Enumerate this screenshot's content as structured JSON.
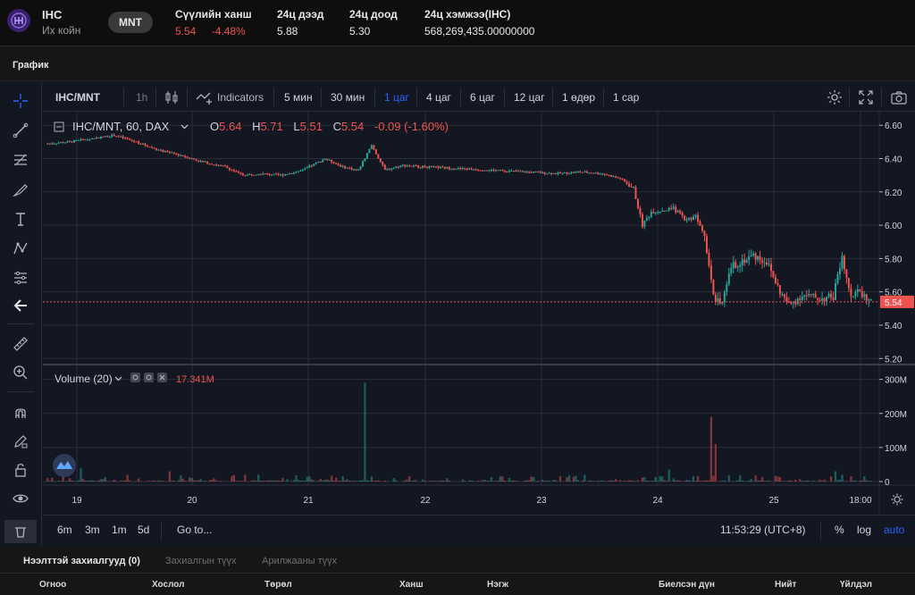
{
  "ticker": {
    "symbol": "IHC",
    "name": "Их койн",
    "quote": "MNT",
    "last_price_label": "Сүүлийн ханш",
    "last_price": "5.54",
    "change_pct": "-4.48%",
    "high_label": "24ц дээд",
    "high": "5.88",
    "low_label": "24ц доод",
    "low": "5.30",
    "volume_label": "24ц хэмжээ(IHC)",
    "volume": "568,269,435.00000000"
  },
  "section_title": "График",
  "chart_toolbar": {
    "symbol": "IHC/MNT",
    "interval": "1h",
    "indicators": "Indicators",
    "timeframes": [
      "5 мин",
      "30 мин",
      "1 цаг",
      "4 цаг",
      "6 цаг",
      "12 цаг",
      "1 өдөр",
      "1 сар"
    ],
    "active_timeframe": "1 цаг"
  },
  "legend": {
    "series": "IHC/MNT, 60, DAX",
    "o_label": "O",
    "o": "5.64",
    "h_label": "H",
    "h": "5.71",
    "l_label": "L",
    "l": "5.51",
    "c_label": "C",
    "c": "5.54",
    "change": "-0.09 (-1.60%)"
  },
  "volume_legend": {
    "label": "Volume (20)",
    "value": "17.341M"
  },
  "bottom_bar": {
    "ranges": [
      "6m",
      "3m",
      "1m",
      "5d"
    ],
    "goto": "Go to...",
    "time": "11:53:29 (UTC+8)",
    "pct": "%",
    "log": "log",
    "auto": "auto"
  },
  "colors": {
    "up": "#26a69a",
    "down": "#ef5350",
    "accent": "#2962ff",
    "background": "#131722"
  },
  "chart_data": {
    "type": "candlestick",
    "price_axis": [
      "6.60",
      "6.40",
      "6.20",
      "6.00",
      "5.80",
      "5.60",
      "5.40",
      "5.20"
    ],
    "price_ticks": [
      6.6,
      6.4,
      6.2,
      6.0,
      5.8,
      5.6,
      5.4,
      5.2
    ],
    "volume_axis": [
      "300M",
      "200M",
      "100M",
      "0"
    ],
    "volume_ticks": [
      300,
      200,
      100,
      0
    ],
    "x_axis": [
      "19",
      "20",
      "21",
      "22",
      "23",
      "24",
      "25",
      "18:00"
    ],
    "last_price_label": "5.54",
    "last_price": 5.54,
    "price_ylim": [
      5.18,
      6.66
    ],
    "volume_ylim": [
      0,
      320
    ],
    "price_anchors": [
      [
        0,
        6.49
      ],
      [
        10,
        6.5
      ],
      [
        20,
        6.52
      ],
      [
        30,
        6.54
      ],
      [
        40,
        6.5
      ],
      [
        50,
        6.45
      ],
      [
        60,
        6.42
      ],
      [
        70,
        6.38
      ],
      [
        80,
        6.35
      ],
      [
        88,
        6.3
      ],
      [
        95,
        6.31
      ],
      [
        105,
        6.3
      ],
      [
        115,
        6.33
      ],
      [
        125,
        6.4
      ],
      [
        133,
        6.35
      ],
      [
        140,
        6.33
      ],
      [
        146,
        6.48
      ],
      [
        152,
        6.33
      ],
      [
        160,
        6.36
      ],
      [
        170,
        6.35
      ],
      [
        185,
        6.34
      ],
      [
        200,
        6.33
      ],
      [
        215,
        6.32
      ],
      [
        230,
        6.31
      ],
      [
        240,
        6.32
      ],
      [
        250,
        6.31
      ],
      [
        258,
        6.28
      ],
      [
        264,
        6.22
      ],
      [
        268,
        6.0
      ],
      [
        272,
        6.08
      ],
      [
        282,
        6.1
      ],
      [
        288,
        6.03
      ],
      [
        292,
        6.06
      ],
      [
        296,
        5.95
      ],
      [
        300,
        5.58
      ],
      [
        304,
        5.52
      ],
      [
        308,
        5.75
      ],
      [
        312,
        5.78
      ],
      [
        318,
        5.82
      ],
      [
        324,
        5.78
      ],
      [
        330,
        5.6
      ],
      [
        334,
        5.52
      ],
      [
        340,
        5.58
      ],
      [
        348,
        5.56
      ],
      [
        354,
        5.57
      ],
      [
        358,
        5.82
      ],
      [
        362,
        5.58
      ],
      [
        366,
        5.6
      ],
      [
        371,
        5.54
      ]
    ],
    "volume_spikes": [
      [
        143,
        290
      ],
      [
        299,
        190
      ],
      [
        301,
        110
      ],
      [
        15,
        40
      ],
      [
        55,
        30
      ],
      [
        95,
        20
      ],
      [
        280,
        35
      ],
      [
        355,
        30
      ],
      [
        205,
        15
      ]
    ],
    "candle_count": 372
  },
  "orders": {
    "tabs": [
      "Нээлттэй захиалгууд (0)",
      "Захиалгын түүх",
      "Арилжааны түүх"
    ],
    "columns": [
      "Огноо",
      "Хослол",
      "Төрөл",
      "Ханш",
      "Нэгж",
      "Биелсэн дүн",
      "Нийт",
      "Үйлдэл"
    ]
  }
}
